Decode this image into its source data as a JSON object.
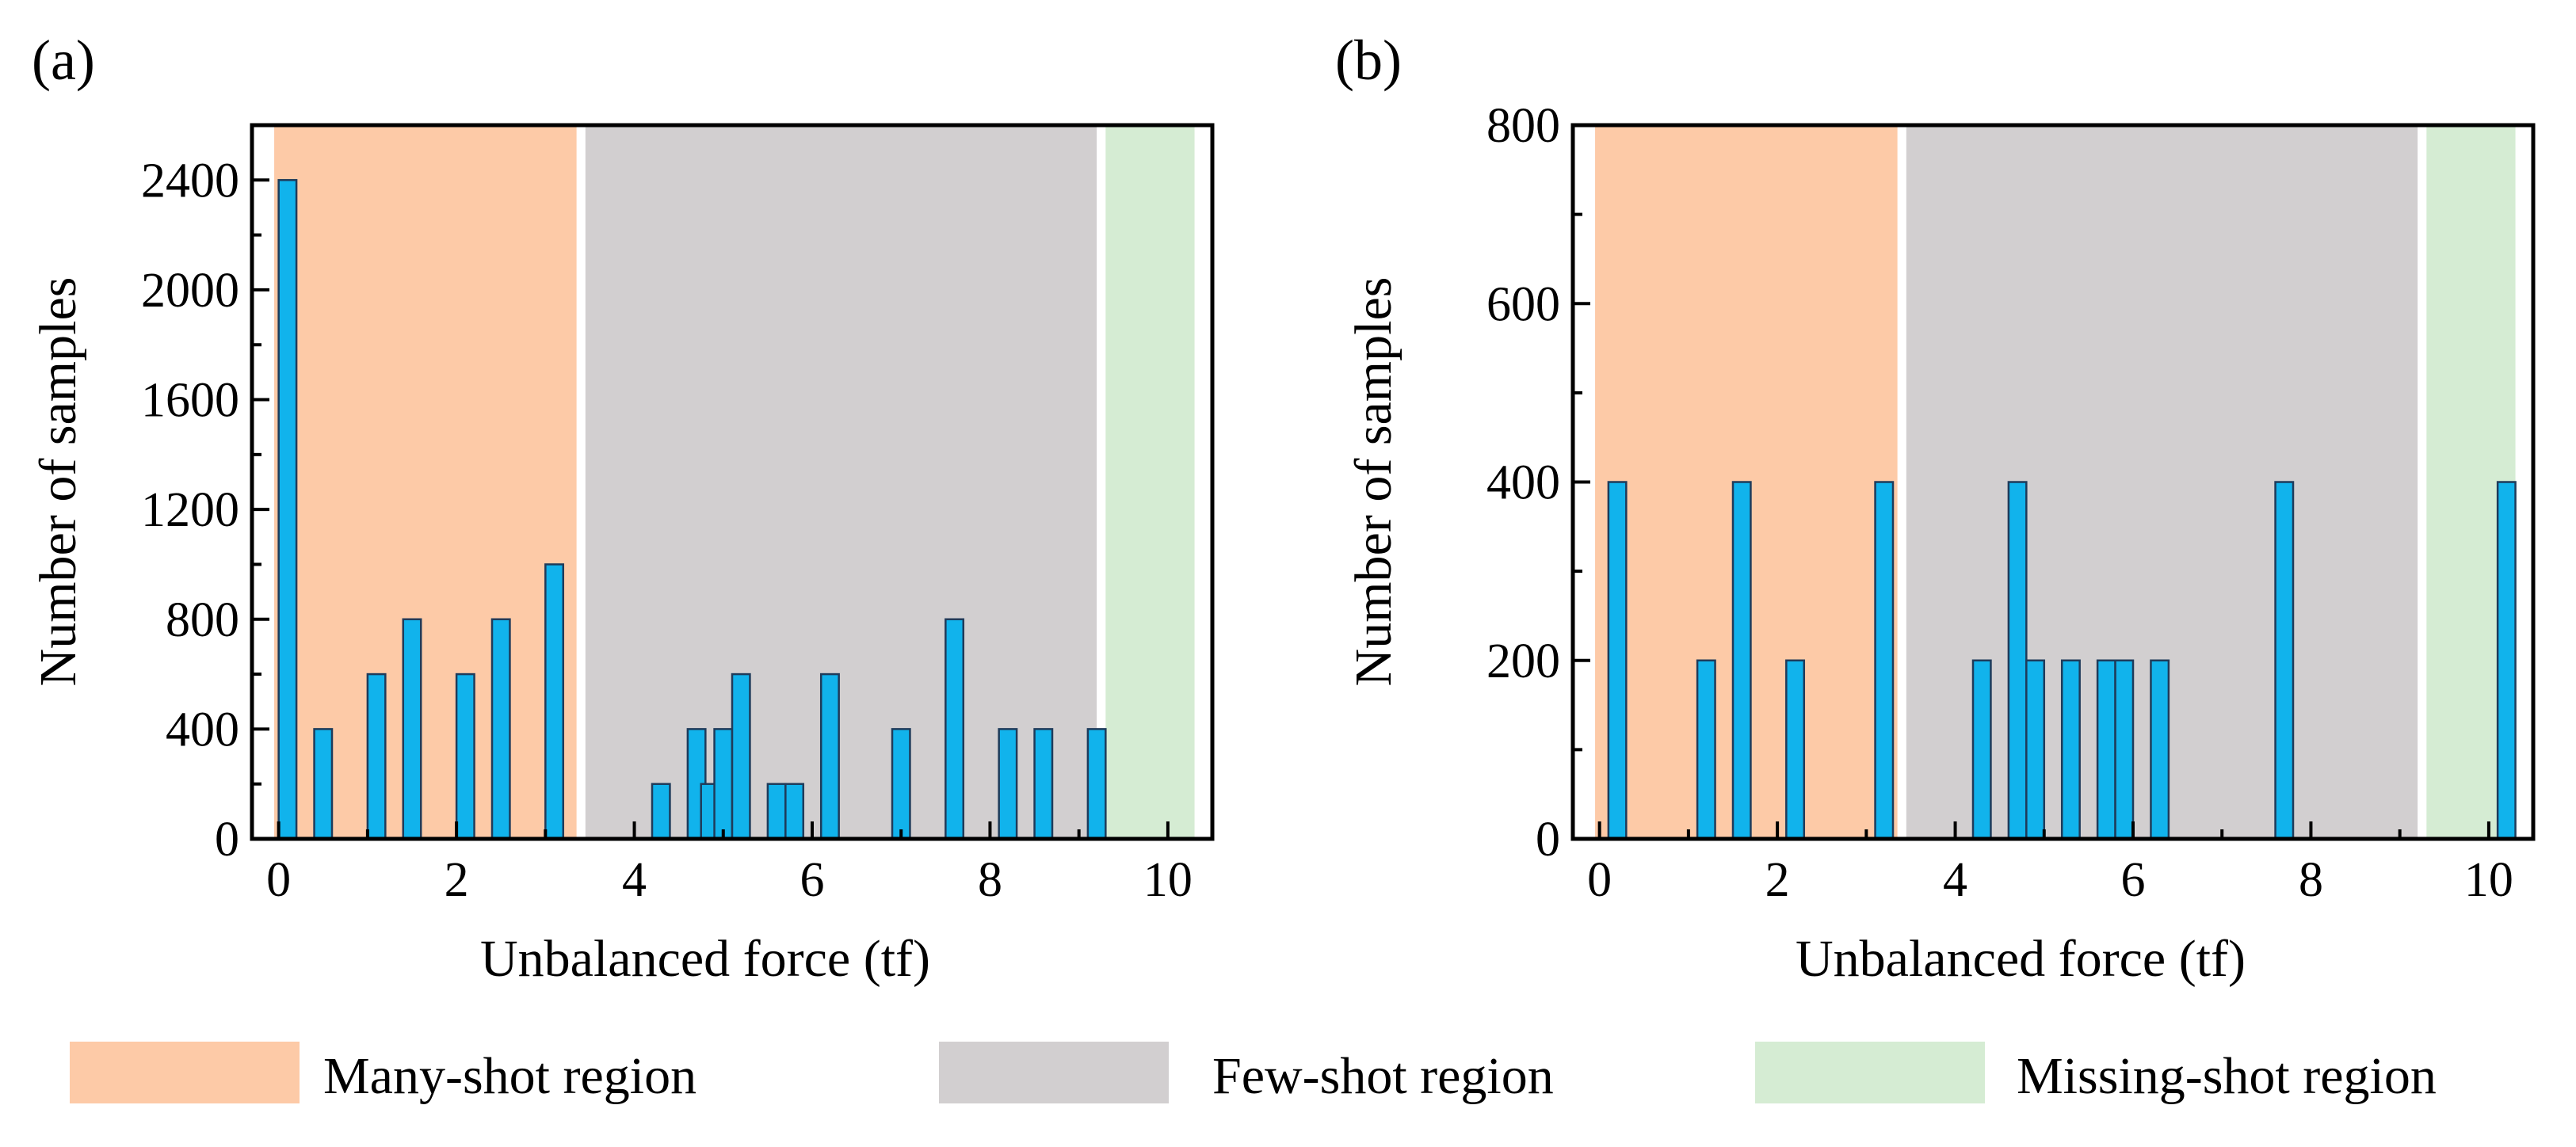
{
  "chart_data": [
    {
      "panel": "(a)",
      "type": "bar",
      "xlabel": "Unbalanced force (tf)",
      "ylabel": "Number of samples",
      "xlim": [
        -0.3,
        10.5
      ],
      "ylim": [
        0,
        2600
      ],
      "xticks": [
        0,
        2,
        4,
        6,
        8,
        10
      ],
      "yticks": [
        0,
        400,
        800,
        1200,
        1600,
        2000,
        2400
      ],
      "regions": [
        {
          "key": "many",
          "x0": -0.05,
          "x1": 3.35
        },
        {
          "key": "few",
          "x0": 3.45,
          "x1": 9.2
        },
        {
          "key": "missing",
          "x0": 9.3,
          "x1": 10.3
        }
      ],
      "bar_width": 0.2,
      "x": [
        0.1,
        0.5,
        1.1,
        1.5,
        2.1,
        2.5,
        3.1,
        4.3,
        4.7,
        4.85,
        5.0,
        5.2,
        5.6,
        5.8,
        6.2,
        7.0,
        7.6,
        8.2,
        8.6,
        9.2
      ],
      "values": [
        2400,
        400,
        600,
        800,
        600,
        800,
        1000,
        200,
        400,
        200,
        400,
        600,
        200,
        200,
        600,
        400,
        800,
        400,
        400,
        400
      ]
    },
    {
      "panel": "(b)",
      "type": "bar",
      "xlabel": "Unbalanced force (tf)",
      "ylabel": "Number of samples",
      "xlim": [
        -0.3,
        10.5
      ],
      "ylim": [
        0,
        800
      ],
      "xticks": [
        0,
        2,
        4,
        6,
        8,
        10
      ],
      "yticks": [
        0,
        200,
        400,
        600,
        800
      ],
      "regions": [
        {
          "key": "many",
          "x0": -0.05,
          "x1": 3.35
        },
        {
          "key": "few",
          "x0": 3.45,
          "x1": 9.2
        },
        {
          "key": "missing",
          "x0": 9.3,
          "x1": 10.3
        }
      ],
      "bar_width": 0.2,
      "x": [
        0.2,
        1.2,
        1.6,
        2.2,
        3.2,
        4.3,
        4.7,
        4.9,
        5.3,
        5.7,
        5.9,
        6.3,
        7.7,
        10.2
      ],
      "values": [
        400,
        200,
        400,
        200,
        400,
        200,
        400,
        200,
        200,
        200,
        200,
        200,
        400,
        400
      ]
    }
  ],
  "legend": [
    {
      "key": "many",
      "label": "Many-shot region"
    },
    {
      "key": "few",
      "label": "Few-shot region"
    },
    {
      "key": "missing",
      "label": "Missing-shot region"
    }
  ],
  "colors": {
    "many": "#fdcaa7",
    "few": "#d2cfd0",
    "missing": "#d5ecd3",
    "bar": "#11b3ec",
    "bar_edge": "#1f3b5a",
    "axis": "#000000"
  }
}
